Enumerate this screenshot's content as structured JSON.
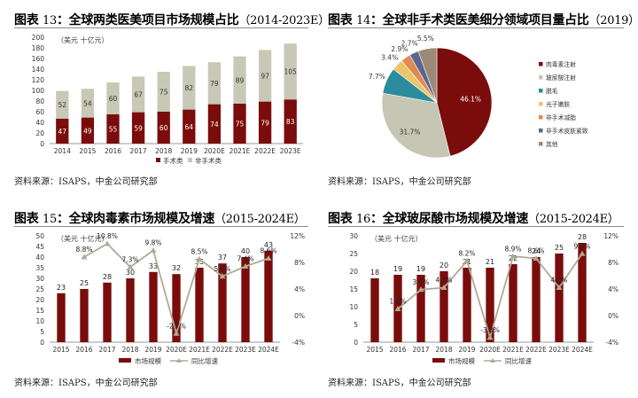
{
  "charts": [
    {
      "title_prefix": "图表",
      "title_num": "13",
      "title_main": "全球两类医美项目市场规模占比",
      "title_year": "（2014-2023E）",
      "source": "资料来源：ISAPS，中金公司研究部",
      "unit": "（美元 十亿元）"
    },
    {
      "title_prefix": "图表",
      "title_num": "14",
      "title_main": "全球非手术类医美细分领域项目量占比",
      "title_year": "（2019）",
      "source": "资料来源：ISAPS，中金公司研究部"
    },
    {
      "title_prefix": "图表",
      "title_num": "15",
      "title_main": "全球肉毒素市场规模及增速",
      "title_year": "（2015-2024E）",
      "source": "资料来源：ISAPS，中金公司研究部",
      "unit": "（美元 十亿元）"
    },
    {
      "title_prefix": "图表",
      "title_num": "16",
      "title_main": "全球玻尿酸市场规模及增速",
      "title_year": "（2015-2024E）",
      "source": "资料来源：ISAPS，中金公司研究部",
      "unit": "（美元 十亿元）"
    }
  ],
  "chart_data": [
    {
      "type": "bar",
      "categories": [
        "2014",
        "2015",
        "2016",
        "2017",
        "2018",
        "2019",
        "2020E",
        "2021E",
        "2022E",
        "2023E"
      ],
      "series": [
        {
          "name": "手术类",
          "values": [
            47,
            49,
            55,
            59,
            60,
            64,
            74,
            75,
            79,
            83
          ],
          "color": "#7b0c0c"
        },
        {
          "name": "非手术类",
          "values": [
            52,
            54,
            60,
            67,
            75,
            82,
            79,
            89,
            97,
            105
          ],
          "color": "#c8c8b6"
        }
      ],
      "ylim": [
        0,
        200
      ],
      "yticks": [
        0,
        20,
        40,
        60,
        80,
        100,
        120,
        140,
        160,
        180,
        200
      ],
      "legend": "bottom"
    },
    {
      "type": "pie",
      "slices": [
        {
          "name": "肉毒素注射",
          "value": 46.1,
          "label": "46.1%",
          "color": "#7b0c0c"
        },
        {
          "name": "玻尿酸注射",
          "value": 31.7,
          "label": "31.7%",
          "color": "#c6c6b4"
        },
        {
          "name": "脱毛",
          "value": 7.7,
          "label": "7.7%",
          "color": "#2a8c9c"
        },
        {
          "name": "光子嫩肤",
          "value": 3.4,
          "label": "3.4%",
          "color": "#ecc46a"
        },
        {
          "name": "非手术减脂",
          "value": 2.9,
          "label": "2.9%",
          "color": "#e08a50"
        },
        {
          "name": "非手术皮肤紧致",
          "value": 2.7,
          "label": "2.7%",
          "color": "#5a6690"
        },
        {
          "name": "其他",
          "value": 5.5,
          "label": "5.5%",
          "color": "#9c8a78"
        }
      ],
      "legend": "right"
    },
    {
      "type": "bar",
      "categories": [
        "2015",
        "2016",
        "2017",
        "2018",
        "2019",
        "2020E",
        "2021E",
        "2022E",
        "2023E",
        "2024E"
      ],
      "bar_series": {
        "name": "市场规模",
        "values": [
          23,
          25,
          28,
          30,
          33,
          32,
          35,
          37,
          40,
          43
        ],
        "color": "#7b0c0c"
      },
      "line_series": {
        "name": "同比增速",
        "values": [
          null,
          8.8,
          10.8,
          7.3,
          9.8,
          -2.7,
          8.5,
          5.9,
          7.4,
          8.6
        ],
        "labels": [
          "",
          "8.8%",
          "10.8%",
          "7.3%",
          "9.8%",
          "-2.7%",
          "8.5%",
          "5.9%",
          "7.4%",
          "8.6%"
        ],
        "color": "#b0aa96"
      },
      "ylim": [
        0,
        50
      ],
      "yticks": [
        0,
        5,
        10,
        15,
        20,
        25,
        30,
        35,
        40,
        45,
        50
      ],
      "y2lim": [
        -4,
        12
      ],
      "y2ticks": [
        "-4%",
        "0%",
        "4%",
        "8%",
        "12%"
      ],
      "legend": "bottom"
    },
    {
      "type": "bar",
      "categories": [
        "2015",
        "2016",
        "2017",
        "2018",
        "2019",
        "2020E",
        "2021E",
        "2022E",
        "2023E",
        "2024E"
      ],
      "bar_series": {
        "name": "市场规模",
        "values": [
          18,
          19,
          19,
          20,
          21,
          21,
          22,
          24,
          25,
          28
        ],
        "color": "#7b0c0c"
      },
      "line_series": {
        "name": "同比增速",
        "values": [
          null,
          1.0,
          3.9,
          4.2,
          8.2,
          -3.3,
          8.9,
          8.6,
          4.2,
          9.3
        ],
        "labels": [
          "",
          "1.0%",
          "3.9%",
          "4.2%",
          "8.2%",
          "-3.3%",
          "8.9%",
          "8.6%",
          "4.2%",
          "9.3%"
        ],
        "color": "#b0aa96"
      },
      "ylim": [
        0,
        30
      ],
      "yticks": [
        0,
        5,
        10,
        15,
        20,
        25,
        30
      ],
      "y2lim": [
        -4,
        12
      ],
      "y2ticks": [
        "-4%",
        "0%",
        "4%",
        "8%",
        "12%"
      ],
      "legend": "bottom"
    }
  ]
}
